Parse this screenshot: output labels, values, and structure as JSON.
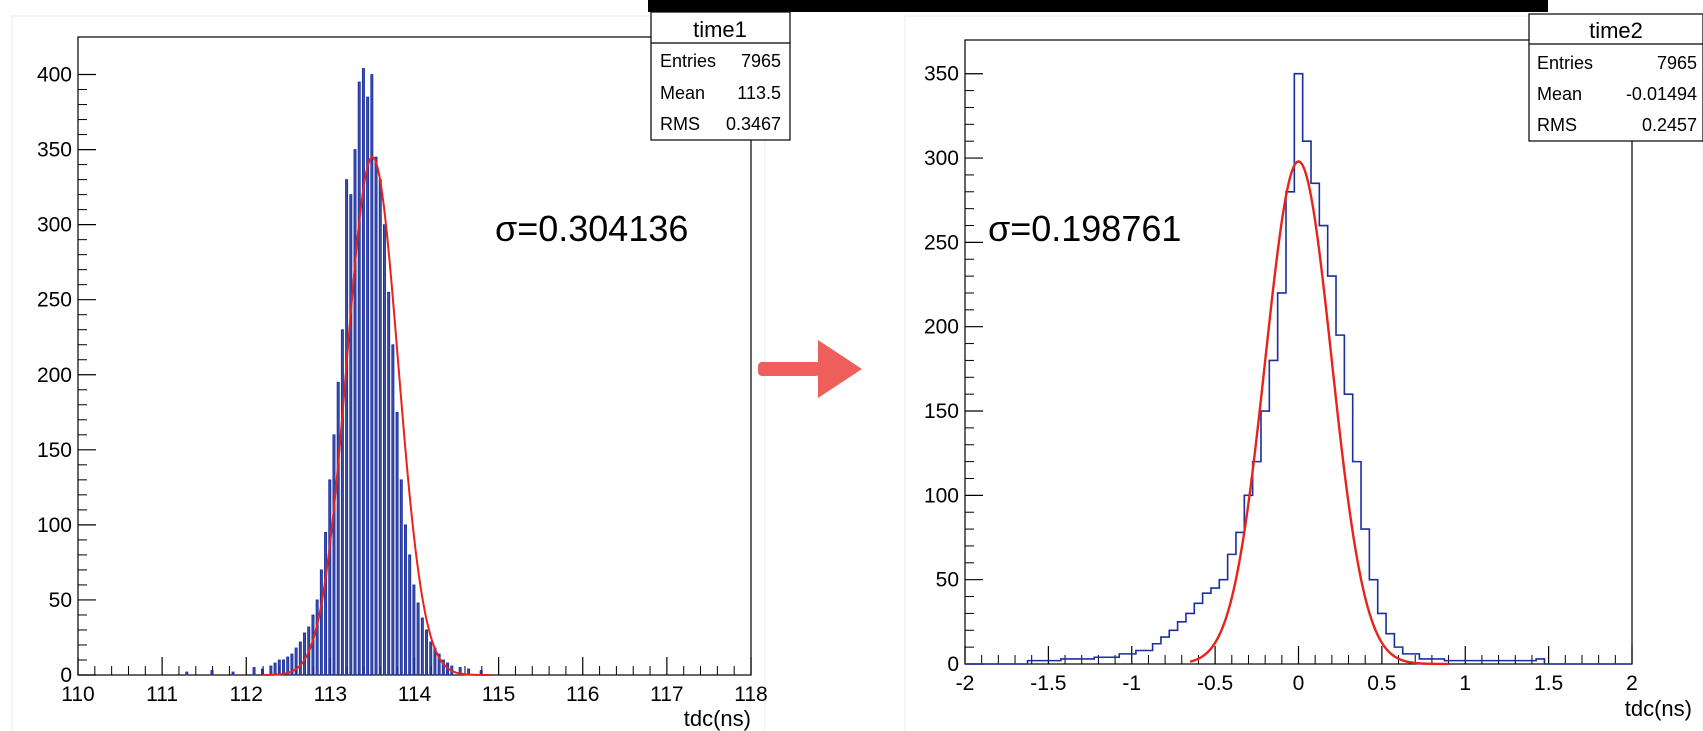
{
  "colors": {
    "histogram": "#1a2e9c",
    "fit": "#e8231b",
    "arrow": "#ee5f5b",
    "axis": "#000000"
  },
  "arrow_icon": "right-arrow-icon",
  "chart_data": [
    {
      "type": "histogram",
      "name": "time1",
      "stats": {
        "entries_label": "Entries",
        "entries": "7965",
        "mean_label": "Mean",
        "mean": "113.5",
        "rms_label": "RMS",
        "rms": "0.3467"
      },
      "xlabel": "tdc(ns)",
      "annotation": "σ=0.304136",
      "xlim": [
        110,
        118
      ],
      "ylim": [
        0,
        425
      ],
      "xticks": [
        "110",
        "111",
        "112",
        "113",
        "114",
        "115",
        "116",
        "117",
        "118"
      ],
      "yticks": [
        "0",
        "50",
        "100",
        "150",
        "200",
        "250",
        "300",
        "350",
        "400"
      ],
      "bin_width": 0.04,
      "bins": [
        {
          "x": 111.3,
          "y": 2
        },
        {
          "x": 111.6,
          "y": 3
        },
        {
          "x": 111.85,
          "y": 2
        },
        {
          "x": 112.1,
          "y": 5
        },
        {
          "x": 112.2,
          "y": 4
        },
        {
          "x": 112.3,
          "y": 6
        },
        {
          "x": 112.35,
          "y": 8
        },
        {
          "x": 112.4,
          "y": 10
        },
        {
          "x": 112.45,
          "y": 10
        },
        {
          "x": 112.5,
          "y": 12
        },
        {
          "x": 112.55,
          "y": 14
        },
        {
          "x": 112.6,
          "y": 18
        },
        {
          "x": 112.65,
          "y": 22
        },
        {
          "x": 112.7,
          "y": 28
        },
        {
          "x": 112.75,
          "y": 32
        },
        {
          "x": 112.8,
          "y": 40
        },
        {
          "x": 112.85,
          "y": 50
        },
        {
          "x": 112.9,
          "y": 70
        },
        {
          "x": 112.95,
          "y": 95
        },
        {
          "x": 113.0,
          "y": 130
        },
        {
          "x": 113.05,
          "y": 160
        },
        {
          "x": 113.1,
          "y": 195
        },
        {
          "x": 113.15,
          "y": 230
        },
        {
          "x": 113.2,
          "y": 330
        },
        {
          "x": 113.25,
          "y": 320
        },
        {
          "x": 113.3,
          "y": 350
        },
        {
          "x": 113.35,
          "y": 395
        },
        {
          "x": 113.4,
          "y": 404
        },
        {
          "x": 113.45,
          "y": 385
        },
        {
          "x": 113.5,
          "y": 400
        },
        {
          "x": 113.55,
          "y": 345
        },
        {
          "x": 113.6,
          "y": 330
        },
        {
          "x": 113.65,
          "y": 300
        },
        {
          "x": 113.7,
          "y": 255
        },
        {
          "x": 113.75,
          "y": 220
        },
        {
          "x": 113.8,
          "y": 175
        },
        {
          "x": 113.85,
          "y": 130
        },
        {
          "x": 113.9,
          "y": 100
        },
        {
          "x": 113.95,
          "y": 80
        },
        {
          "x": 114.0,
          "y": 60
        },
        {
          "x": 114.05,
          "y": 48
        },
        {
          "x": 114.1,
          "y": 38
        },
        {
          "x": 114.15,
          "y": 30
        },
        {
          "x": 114.2,
          "y": 22
        },
        {
          "x": 114.25,
          "y": 18
        },
        {
          "x": 114.3,
          "y": 14
        },
        {
          "x": 114.35,
          "y": 10
        },
        {
          "x": 114.4,
          "y": 8
        },
        {
          "x": 114.45,
          "y": 6
        },
        {
          "x": 114.55,
          "y": 5
        },
        {
          "x": 114.65,
          "y": 4
        },
        {
          "x": 114.8,
          "y": 3
        }
      ],
      "fit": {
        "mean": 113.5,
        "sigma": 0.304136,
        "amplitude": 345,
        "xrange": [
          112.2,
          114.9
        ]
      }
    },
    {
      "type": "histogram",
      "name": "time2",
      "stats": {
        "entries_label": "Entries",
        "entries": "7965",
        "mean_label": "Mean",
        "mean": "-0.01494",
        "rms_label": "RMS",
        "rms": "0.2457"
      },
      "xlabel": "tdc(ns)",
      "annotation": "σ=0.198761",
      "xlim": [
        -2,
        2
      ],
      "ylim": [
        0,
        370
      ],
      "xticks": [
        "-2",
        "-1.5",
        "-1",
        "-0.5",
        "0",
        "0.5",
        "1",
        "1.5",
        "2"
      ],
      "yticks": [
        "0",
        "50",
        "100",
        "150",
        "200",
        "250",
        "300",
        "350"
      ],
      "step_curve": [
        {
          "x": -1.6,
          "y": 2
        },
        {
          "x": -1.4,
          "y": 3
        },
        {
          "x": -1.2,
          "y": 4
        },
        {
          "x": -1.05,
          "y": 6
        },
        {
          "x": -0.95,
          "y": 8
        },
        {
          "x": -0.85,
          "y": 12
        },
        {
          "x": -0.8,
          "y": 16
        },
        {
          "x": -0.75,
          "y": 20
        },
        {
          "x": -0.7,
          "y": 25
        },
        {
          "x": -0.65,
          "y": 30
        },
        {
          "x": -0.6,
          "y": 36
        },
        {
          "x": -0.55,
          "y": 42
        },
        {
          "x": -0.5,
          "y": 45
        },
        {
          "x": -0.45,
          "y": 50
        },
        {
          "x": -0.4,
          "y": 65
        },
        {
          "x": -0.35,
          "y": 78
        },
        {
          "x": -0.3,
          "y": 100
        },
        {
          "x": -0.25,
          "y": 120
        },
        {
          "x": -0.2,
          "y": 150
        },
        {
          "x": -0.15,
          "y": 180
        },
        {
          "x": -0.1,
          "y": 220
        },
        {
          "x": -0.05,
          "y": 280
        },
        {
          "x": 0.0,
          "y": 350
        },
        {
          "x": 0.05,
          "y": 310
        },
        {
          "x": 0.1,
          "y": 285
        },
        {
          "x": 0.15,
          "y": 260
        },
        {
          "x": 0.2,
          "y": 230
        },
        {
          "x": 0.25,
          "y": 195
        },
        {
          "x": 0.3,
          "y": 160
        },
        {
          "x": 0.35,
          "y": 120
        },
        {
          "x": 0.4,
          "y": 80
        },
        {
          "x": 0.45,
          "y": 50
        },
        {
          "x": 0.5,
          "y": 30
        },
        {
          "x": 0.55,
          "y": 18
        },
        {
          "x": 0.6,
          "y": 10
        },
        {
          "x": 0.65,
          "y": 6
        },
        {
          "x": 0.75,
          "y": 3
        },
        {
          "x": 0.9,
          "y": 2
        },
        {
          "x": 1.45,
          "y": 3
        }
      ],
      "fit": {
        "mean": 0.0,
        "sigma": 0.198761,
        "amplitude": 298,
        "xrange": [
          -0.65,
          0.9
        ]
      }
    }
  ]
}
